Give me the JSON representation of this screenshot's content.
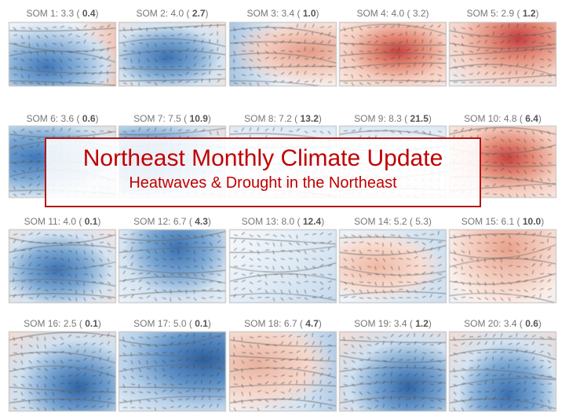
{
  "title": "Northeast Monthly Climate Update",
  "subtitle": "Heatwaves & Drought in the Northeast",
  "colors": {
    "accent": "#c00000",
    "warm": "#d9534a",
    "cold": "#3f7fc4"
  },
  "panels": [
    {
      "name": "SOM 1:",
      "mean": "3.3",
      "pct": "0.4",
      "pct_bold": true,
      "anomaly": "cold-sw"
    },
    {
      "name": "SOM 2:",
      "mean": "4.0",
      "pct": "2.7",
      "pct_bold": true,
      "anomaly": "cold-center"
    },
    {
      "name": "SOM 3:",
      "mean": "3.4",
      "pct": "1.0",
      "pct_bold": true,
      "anomaly": "warm-east"
    },
    {
      "name": "SOM 4:",
      "mean": "4.0",
      "pct": "3.2",
      "pct_bold": false,
      "anomaly": "warm-center"
    },
    {
      "name": "SOM 5:",
      "mean": "2.9",
      "pct": "1.2",
      "pct_bold": true,
      "anomaly": "warm-northeast"
    },
    {
      "name": "SOM 6:",
      "mean": "3.6",
      "pct": "0.6",
      "pct_bold": true,
      "anomaly": "cold-west"
    },
    {
      "name": "SOM 7:",
      "mean": "7.5",
      "pct": "10.9",
      "pct_bold": true,
      "anomaly": "cold-west"
    },
    {
      "name": "SOM 8:",
      "mean": "7.2",
      "pct": "13.2",
      "pct_bold": true,
      "anomaly": "neutral"
    },
    {
      "name": "SOM 9:",
      "mean": "8.3",
      "pct": "21.5",
      "pct_bold": true,
      "anomaly": "neutral"
    },
    {
      "name": "SOM 10:",
      "mean": "4.8",
      "pct": "6.4",
      "pct_bold": true,
      "anomaly": "warm-center"
    },
    {
      "name": "SOM 11:",
      "mean": "4.0",
      "pct": "0.1",
      "pct_bold": true,
      "anomaly": "cold-center"
    },
    {
      "name": "SOM 12:",
      "mean": "6.7",
      "pct": "4.3",
      "pct_bold": true,
      "anomaly": "cold-north"
    },
    {
      "name": "SOM 13:",
      "mean": "8.0",
      "pct": "12.4",
      "pct_bold": true,
      "anomaly": "neutral-cold"
    },
    {
      "name": "SOM 14:",
      "mean": "5.2",
      "pct": "5.3",
      "pct_bold": false,
      "anomaly": "warm-weak"
    },
    {
      "name": "SOM 15:",
      "mean": "6.1",
      "pct": "10.0",
      "pct_bold": true,
      "anomaly": "warm-north"
    },
    {
      "name": "SOM 16:",
      "mean": "2.5",
      "pct": "0.1",
      "pct_bold": true,
      "anomaly": "cold-southeast"
    },
    {
      "name": "SOM 17:",
      "mean": "5.0",
      "pct": "0.1",
      "pct_bold": true,
      "anomaly": "cold-east"
    },
    {
      "name": "SOM 18:",
      "mean": "6.7",
      "pct": "4.7",
      "pct_bold": true,
      "anomaly": "warm-west"
    },
    {
      "name": "SOM 19:",
      "mean": "3.4",
      "pct": "1.2",
      "pct_bold": true,
      "anomaly": "cold-southeast"
    },
    {
      "name": "SOM 20:",
      "mean": "3.4",
      "pct": "0.6",
      "pct_bold": true,
      "anomaly": "cold-south"
    }
  ]
}
